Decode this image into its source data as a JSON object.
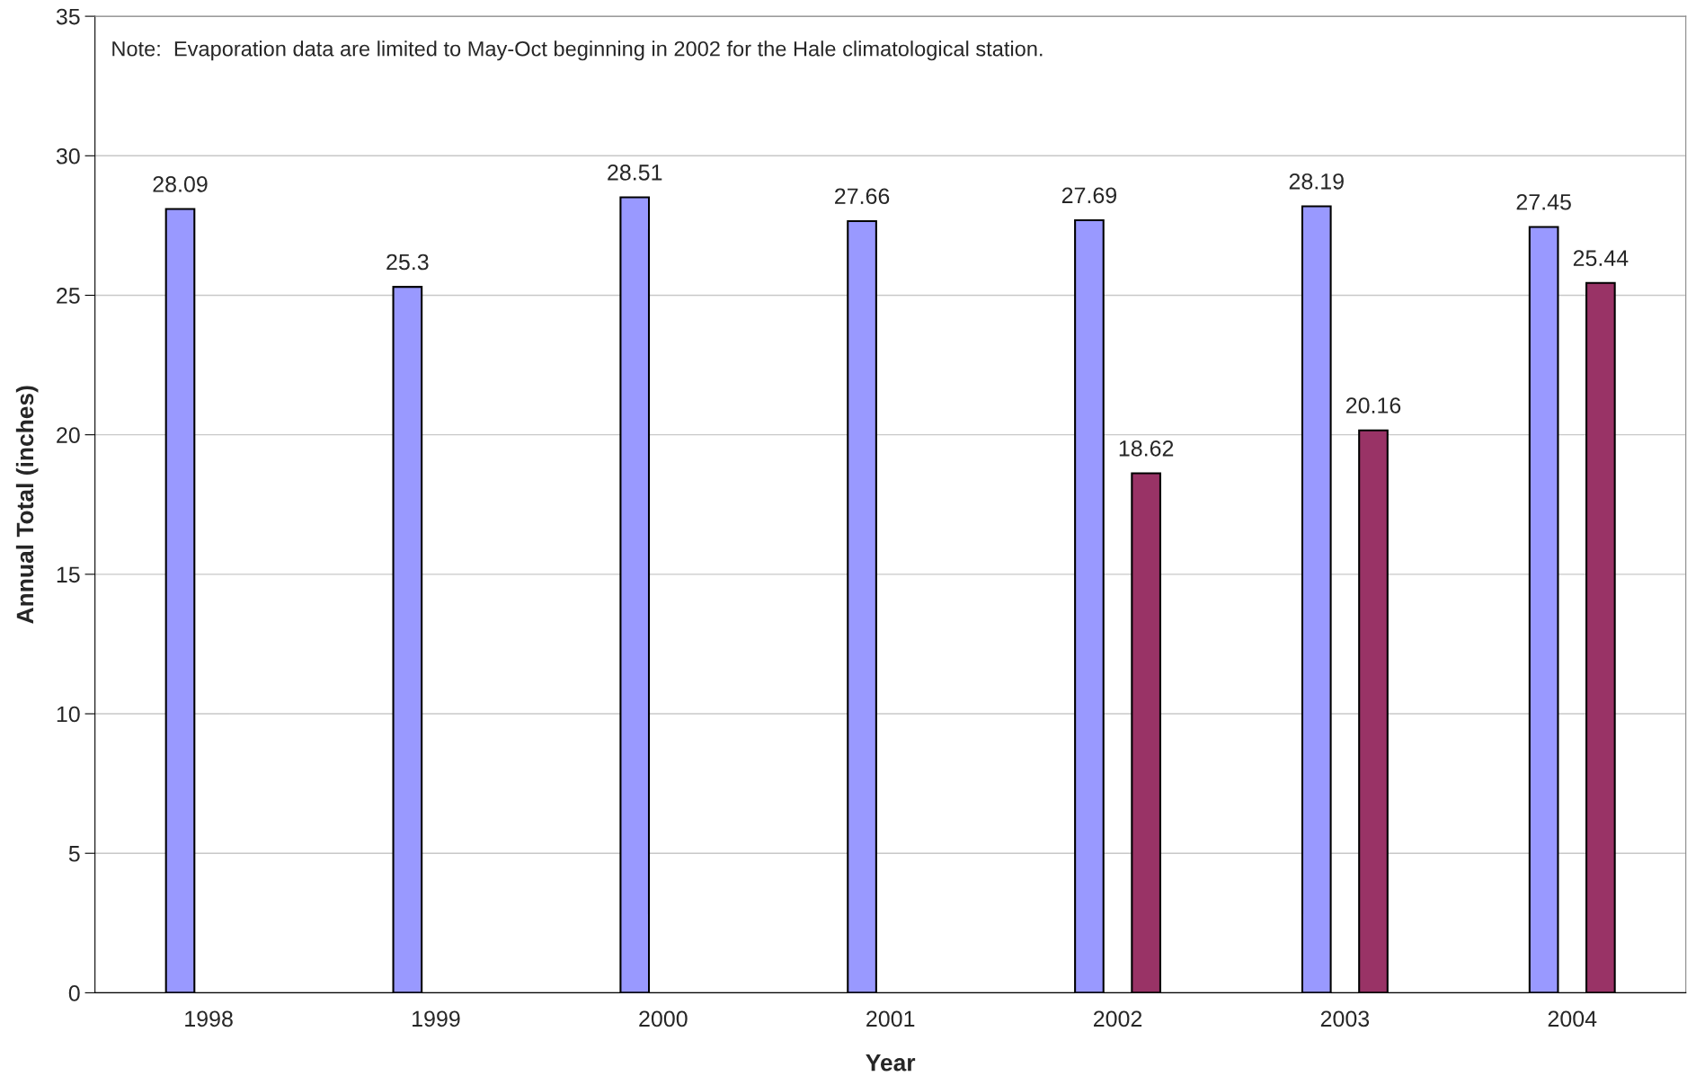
{
  "chart_data": {
    "type": "bar",
    "xlabel": "Year",
    "ylabel": "Annual Total (inches)",
    "categories": [
      "1998",
      "1999",
      "2000",
      "2001",
      "2002",
      "2003",
      "2004"
    ],
    "series": [
      {
        "color": "#9999ff",
        "values": [
          28.09,
          25.3,
          28.51,
          27.66,
          27.69,
          28.19,
          27.45
        ]
      },
      {
        "color": "#993366",
        "values": [
          null,
          null,
          null,
          null,
          18.62,
          20.16,
          25.44
        ]
      }
    ],
    "ylim": [
      0,
      35
    ],
    "yticks": [
      0,
      5,
      10,
      15,
      20,
      25,
      30,
      35
    ],
    "grid": "y",
    "data_labels": true,
    "annotations": [
      "Note:  Evaporation data are limited to May-Oct beginning in 2002 for the Hale climatological station."
    ]
  }
}
